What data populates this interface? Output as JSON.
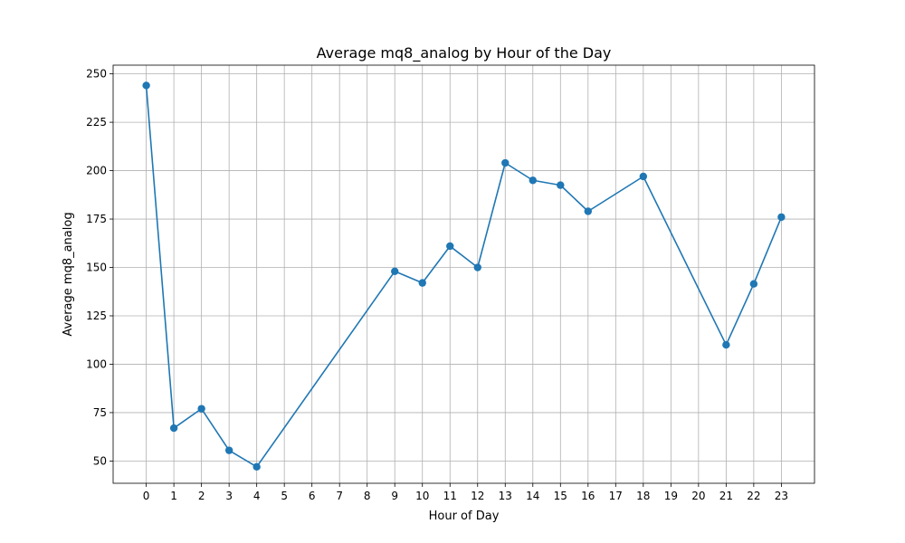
{
  "chart_data": {
    "type": "line",
    "title": "Average mq8_analog by Hour of the Day",
    "xlabel": "Hour of Day",
    "ylabel": "Average mq8_analog",
    "x_ticks": [
      0,
      1,
      2,
      3,
      4,
      5,
      6,
      7,
      8,
      9,
      10,
      11,
      12,
      13,
      14,
      15,
      16,
      17,
      18,
      19,
      20,
      21,
      22,
      23
    ],
    "y_ticks": [
      50,
      75,
      100,
      125,
      150,
      175,
      200,
      225,
      250
    ],
    "xlim": [
      -1.2,
      24.2
    ],
    "ylim": [
      38.5,
      254.5
    ],
    "grid": true,
    "series": [
      {
        "color": "#1f77b4",
        "marker": "circle",
        "x": [
          0,
          1,
          2,
          3,
          4,
          9,
          10,
          11,
          12,
          13,
          14,
          15,
          16,
          18,
          21,
          22,
          23
        ],
        "y": [
          244,
          67,
          77,
          55.5,
          47,
          148,
          142,
          161,
          150,
          204,
          195,
          192.5,
          179,
          197,
          110,
          141.5,
          176
        ]
      }
    ]
  }
}
